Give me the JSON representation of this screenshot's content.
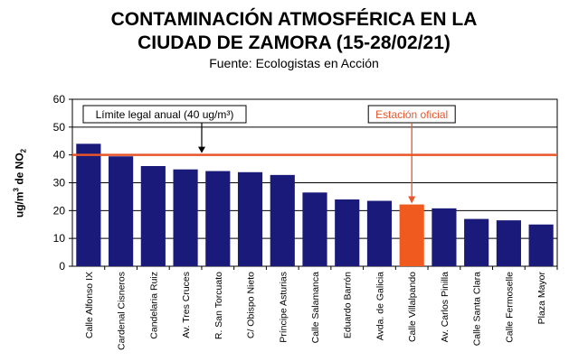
{
  "header": {
    "title_line1": "CONTAMINACIÓN ATMOSFÉRICA EN LA",
    "title_line2": "CIUDAD DE ZAMORA (15-28/02/21)",
    "subtitle": "Fuente: Ecologistas en Acción"
  },
  "chart_data": {
    "type": "bar",
    "title": "CONTAMINACIÓN ATMOSFÉRICA EN LA CIUDAD DE ZAMORA (15-28/02/21)",
    "subtitle": "Fuente: Ecologistas en Acción",
    "ylabel": "ug/m3 de NO2",
    "ylim": [
      0,
      60
    ],
    "yticks": [
      0,
      10,
      20,
      30,
      40,
      50,
      60
    ],
    "grid": true,
    "categories": [
      "Calle Alfonso IX",
      "Cardenal Cisneros",
      "Candelaria Ruiz",
      "Av. Tres Cruces",
      "R. San Torcuato",
      "C/ Obispo Nieto",
      "Príncipe Asturias",
      "Calle Salamanca",
      "Eduardo Barrón",
      "Avda. de Galicia",
      "Calle Villalpando",
      "Av. Carlos Pinilla",
      "Calle Santa Clara",
      "Calle Fermoselle",
      "Plaza Mayor"
    ],
    "values": [
      44,
      39.5,
      36,
      34.8,
      34.2,
      33.8,
      32.8,
      26.5,
      24,
      23.5,
      22.2,
      20.8,
      17,
      16.5,
      15
    ],
    "highlight_index": 10,
    "colors": {
      "bar": "#1a1a7a",
      "highlight": "#f05a1e",
      "limit_line": "#e8552a",
      "annotation_text": "#e8552a"
    },
    "reference_line": {
      "value": 40,
      "label": "Límite legal anual (40 ug/m³)"
    },
    "annotations": [
      {
        "text": "Estación oficial",
        "target_index": 10
      }
    ]
  }
}
